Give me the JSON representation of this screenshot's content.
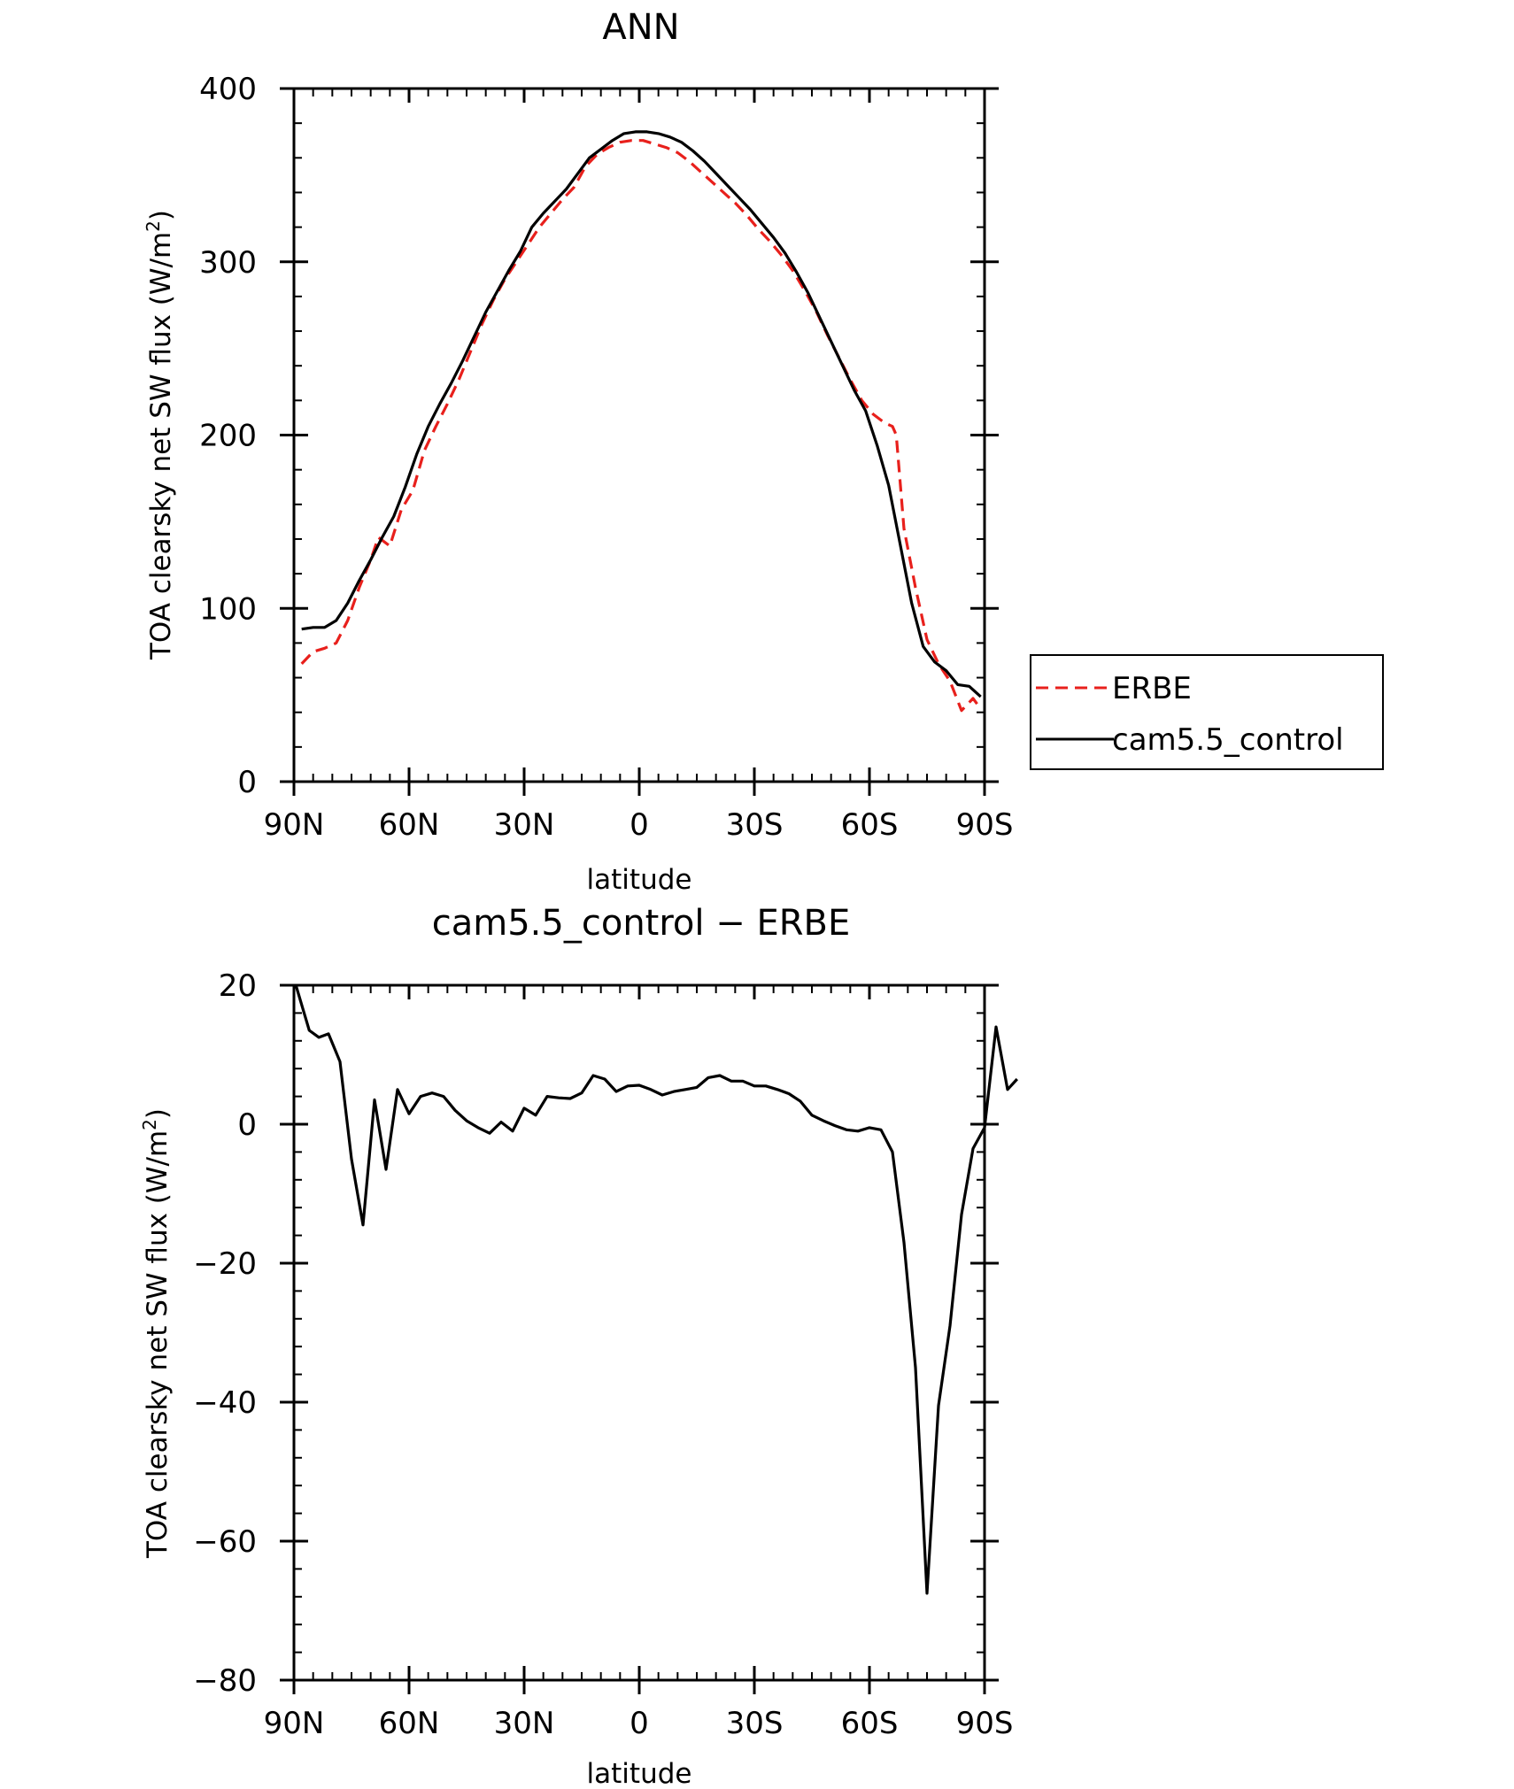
{
  "colors": {
    "erbe": "#e8201c",
    "control": "#000000",
    "axis": "#000000"
  },
  "chart_data": [
    {
      "type": "line",
      "title": "ANN",
      "xlabel": "latitude",
      "ylabel": "TOA clearsky net SW flux (W/m",
      "ylabel_sup": "2",
      "ylabel_close": ")",
      "xlim": [
        -90,
        90
      ],
      "ylim": [
        0,
        400
      ],
      "x_direction": "north-to-south",
      "xticks": [
        {
          "value": -90,
          "label": "90N"
        },
        {
          "value": -60,
          "label": "60N"
        },
        {
          "value": -30,
          "label": "30N"
        },
        {
          "value": 0,
          "label": "0"
        },
        {
          "value": 30,
          "label": "30S"
        },
        {
          "value": 60,
          "label": "60S"
        },
        {
          "value": 90,
          "label": "90S"
        }
      ],
      "yticks": [
        {
          "value": 0,
          "label": "0"
        },
        {
          "value": 100,
          "label": "100"
        },
        {
          "value": 200,
          "label": "200"
        },
        {
          "value": 300,
          "label": "300"
        },
        {
          "value": 400,
          "label": "400"
        }
      ],
      "legend": {
        "placement": "right-of-plot"
      },
      "series": [
        {
          "name": "ERBE",
          "style": "dashed",
          "color_key": "erbe",
          "points": [
            [
              -88,
              68
            ],
            [
              -85,
              75
            ],
            [
              -82,
              77
            ],
            [
              -79,
              80
            ],
            [
              -76,
              93
            ],
            [
              -73,
              112
            ],
            [
              -70,
              128
            ],
            [
              -68,
              141
            ],
            [
              -65,
              136
            ],
            [
              -62,
              157
            ],
            [
              -59,
              168
            ],
            [
              -56,
              191
            ],
            [
              -53,
              205
            ],
            [
              -50,
              218
            ],
            [
              -47,
              232
            ],
            [
              -44,
              248
            ],
            [
              -41,
              264
            ],
            [
              -38,
              278
            ],
            [
              -35,
              290
            ],
            [
              -32,
              300
            ],
            [
              -29,
              310
            ],
            [
              -26,
              320
            ],
            [
              -23,
              328
            ],
            [
              -20,
              336
            ],
            [
              -17,
              343
            ],
            [
              -14,
              355
            ],
            [
              -11,
              362
            ],
            [
              -8,
              366
            ],
            [
              -5,
              369
            ],
            [
              -2,
              370
            ],
            [
              1,
              370
            ],
            [
              4,
              368
            ],
            [
              7,
              366
            ],
            [
              10,
              363
            ],
            [
              13,
              358
            ],
            [
              16,
              352
            ],
            [
              19,
              346
            ],
            [
              22,
              340
            ],
            [
              25,
              334
            ],
            [
              28,
              327
            ],
            [
              31,
              319
            ],
            [
              34,
              312
            ],
            [
              37,
              304
            ],
            [
              40,
              295
            ],
            [
              43,
              284
            ],
            [
              46,
              272
            ],
            [
              49,
              258
            ],
            [
              52,
              245
            ],
            [
              55,
              232
            ],
            [
              58,
              220
            ],
            [
              61,
              212
            ],
            [
              64,
              207
            ],
            [
              66,
              205
            ],
            [
              67,
              200
            ],
            [
              69,
              146
            ],
            [
              72,
              112
            ],
            [
              75,
              82
            ],
            [
              78,
              68
            ],
            [
              81,
              58
            ],
            [
              84,
              41
            ],
            [
              87,
              48
            ],
            [
              89,
              42
            ]
          ]
        },
        {
          "name": "cam5.5_control",
          "style": "solid",
          "color_key": "control",
          "points": [
            [
              -88,
              88
            ],
            [
              -85,
              89
            ],
            [
              -82,
              89
            ],
            [
              -79,
              93
            ],
            [
              -76,
              103
            ],
            [
              -73,
              116
            ],
            [
              -70,
              128
            ],
            [
              -67,
              141
            ],
            [
              -64,
              153
            ],
            [
              -61,
              170
            ],
            [
              -58,
              189
            ],
            [
              -55,
              205
            ],
            [
              -52,
              218
            ],
            [
              -49,
              230
            ],
            [
              -46,
              243
            ],
            [
              -43,
              257
            ],
            [
              -40,
              271
            ],
            [
              -37,
              283
            ],
            [
              -34,
              295
            ],
            [
              -31,
              306
            ],
            [
              -28,
              320
            ],
            [
              -25,
              328
            ],
            [
              -22,
              335
            ],
            [
              -19,
              342
            ],
            [
              -16,
              351
            ],
            [
              -13,
              360
            ],
            [
              -10,
              365
            ],
            [
              -7,
              370
            ],
            [
              -4,
              374
            ],
            [
              -1,
              375
            ],
            [
              2,
              375
            ],
            [
              5,
              374
            ],
            [
              8,
              372
            ],
            [
              11,
              369
            ],
            [
              14,
              364
            ],
            [
              17,
              358
            ],
            [
              20,
              351
            ],
            [
              23,
              344
            ],
            [
              26,
              337
            ],
            [
              29,
              330
            ],
            [
              32,
              322
            ],
            [
              35,
              314
            ],
            [
              38,
              305
            ],
            [
              41,
              294
            ],
            [
              44,
              282
            ],
            [
              47,
              268
            ],
            [
              50,
              254
            ],
            [
              53,
              240
            ],
            [
              56,
              226
            ],
            [
              59,
              214
            ],
            [
              62,
              194
            ],
            [
              65,
              171
            ],
            [
              68,
              137
            ],
            [
              71,
              103
            ],
            [
              74,
              78
            ],
            [
              77,
              69
            ],
            [
              80,
              64
            ],
            [
              83,
              56
            ],
            [
              86,
              55
            ],
            [
              89,
              49
            ]
          ]
        }
      ]
    },
    {
      "type": "line",
      "title": "cam5.5_control − ERBE",
      "xlabel": "latitude",
      "ylabel": "TOA clearsky net SW flux (W/m",
      "ylabel_sup": "2",
      "ylabel_close": ")",
      "xlim": [
        -90,
        90
      ],
      "ylim": [
        -80,
        20
      ],
      "x_direction": "north-to-south",
      "xticks": [
        {
          "value": -90,
          "label": "90N"
        },
        {
          "value": -60,
          "label": "60N"
        },
        {
          "value": -30,
          "label": "30N"
        },
        {
          "value": 0,
          "label": "0"
        },
        {
          "value": 30,
          "label": "30S"
        },
        {
          "value": 60,
          "label": "60S"
        },
        {
          "value": 90,
          "label": "90S"
        }
      ],
      "yticks": [
        {
          "value": -80,
          "label": "−80"
        },
        {
          "value": -60,
          "label": "−60"
        },
        {
          "value": -40,
          "label": "−40"
        },
        {
          "value": -20,
          "label": "−20"
        },
        {
          "value": 0,
          "label": "0"
        },
        {
          "value": 20,
          "label": "20"
        }
      ],
      "series": [
        {
          "style": "solid",
          "color_key": "control",
          "points": [
            [
              -89.5,
              20
            ],
            [
              -86,
              13.5
            ],
            [
              -83.5,
              12.5
            ],
            [
              -81,
              13
            ],
            [
              -78,
              9
            ],
            [
              -75,
              -5
            ],
            [
              -72,
              -14.5
            ],
            [
              -69,
              3.5
            ],
            [
              -66,
              -6.5
            ],
            [
              -63,
              5
            ],
            [
              -60,
              1.5
            ],
            [
              -57,
              4
            ],
            [
              -54,
              4.5
            ],
            [
              -51,
              4
            ],
            [
              -48,
              2
            ],
            [
              -45,
              0.5
            ],
            [
              -42,
              -0.5
            ],
            [
              -39,
              -1.3
            ],
            [
              -36,
              0.3
            ],
            [
              -33,
              -1
            ],
            [
              -30,
              2.3
            ],
            [
              -27,
              1.3
            ],
            [
              -24,
              4
            ],
            [
              -21,
              3.8
            ],
            [
              -18,
              3.7
            ],
            [
              -15,
              4.5
            ],
            [
              -12,
              7
            ],
            [
              -9,
              6.5
            ],
            [
              -6,
              4.7
            ],
            [
              -3,
              5.5
            ],
            [
              0,
              5.6
            ],
            [
              3,
              5
            ],
            [
              6,
              4.2
            ],
            [
              9,
              4.7
            ],
            [
              12,
              5
            ],
            [
              15,
              5.3
            ],
            [
              18,
              6.7
            ],
            [
              21,
              7
            ],
            [
              24,
              6.2
            ],
            [
              27,
              6.2
            ],
            [
              30,
              5.5
            ],
            [
              33,
              5.5
            ],
            [
              36,
              5
            ],
            [
              39,
              4.4
            ],
            [
              42,
              3.3
            ],
            [
              45,
              1.3
            ],
            [
              48,
              0.5
            ],
            [
              51,
              -0.2
            ],
            [
              54,
              -0.8
            ],
            [
              57,
              -1
            ],
            [
              60,
              -0.5
            ],
            [
              63,
              -0.8
            ],
            [
              66,
              -4
            ],
            [
              69,
              -17
            ],
            [
              72,
              -35
            ],
            [
              75,
              -67.5
            ],
            [
              78,
              -40.5
            ],
            [
              81,
              -29
            ],
            [
              84,
              -13
            ],
            [
              87,
              -3.5
            ],
            [
              90,
              -0.5
            ],
            [
              93,
              14
            ],
            [
              96,
              5
            ],
            [
              98.5,
              6.5
            ]
          ]
        }
      ]
    }
  ]
}
